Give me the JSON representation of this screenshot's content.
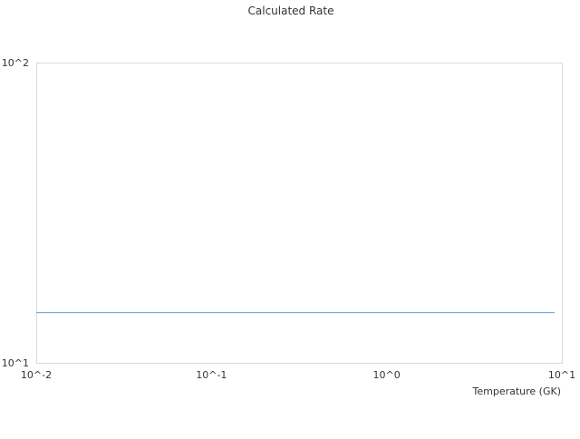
{
  "chart_data": {
    "type": "line",
    "title": "Calculated Rate",
    "xlabel": "Temperature (GK)",
    "ylabel": "",
    "xscale": "log",
    "yscale": "log",
    "xlim": [
      0.01,
      10
    ],
    "ylim": [
      10,
      100
    ],
    "xticks": [
      0.01,
      0.1,
      1,
      10
    ],
    "xtick_labels": [
      "10^-2",
      "10^-1",
      "10^0",
      "10^1"
    ],
    "yticks": [
      10,
      100
    ],
    "ytick_labels": [
      "10^1",
      "10^2"
    ],
    "grid": false,
    "legend": "none",
    "series": [
      {
        "x": [
          0.01,
          9.1
        ],
        "y": [
          14.7,
          14.7
        ],
        "color": "#5aa0e0"
      }
    ],
    "colors": {
      "axis": "#d9d9d9",
      "text": "#333333"
    }
  }
}
